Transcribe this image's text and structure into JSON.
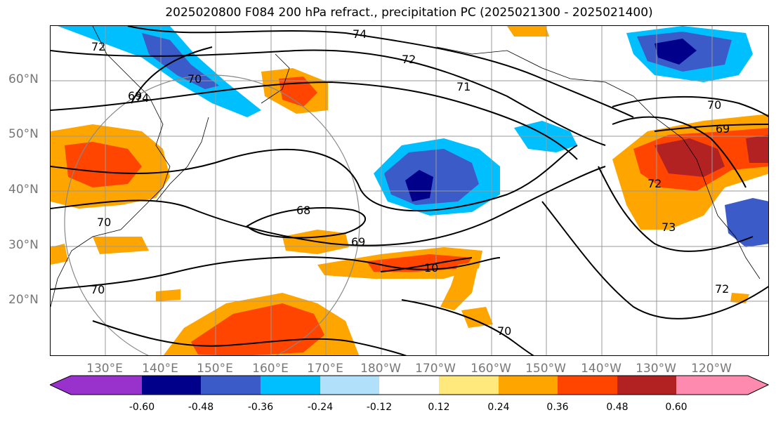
{
  "title": "2025020800 F084 200 hPa refract., precipitation PC (2025021300 - 2025021400)",
  "latitude_labels": [
    "60°N",
    "50°N",
    "40°N",
    "30°N",
    "20°N"
  ],
  "longitude_labels": [
    "130°E",
    "140°E",
    "150°E",
    "160°E",
    "170°E",
    "180°W",
    "170°W",
    "160°W",
    "150°W",
    "140°W",
    "130°W",
    "120°W"
  ],
  "colorbar": {
    "ticks": [
      "-0.60",
      "-0.48",
      "-0.36",
      "-0.24",
      "-0.12",
      "0.12",
      "0.24",
      "0.36",
      "0.48",
      "0.60"
    ],
    "colors": [
      "#9932cc",
      "#00008b",
      "#3b5bc9",
      "#00bfff",
      "#b0e0fa",
      "#ffffff",
      "#ffe87c",
      "#ffa500",
      "#ff4500",
      "#b22222",
      "#ff8ab0"
    ]
  },
  "contour_labels": [
    "74",
    "72",
    "71",
    "70",
    "69",
    "68",
    "69",
    "70",
    "10",
    "70",
    "70",
    "72",
    "73",
    "72",
    "70",
    "69",
    "74",
    "72"
  ]
}
